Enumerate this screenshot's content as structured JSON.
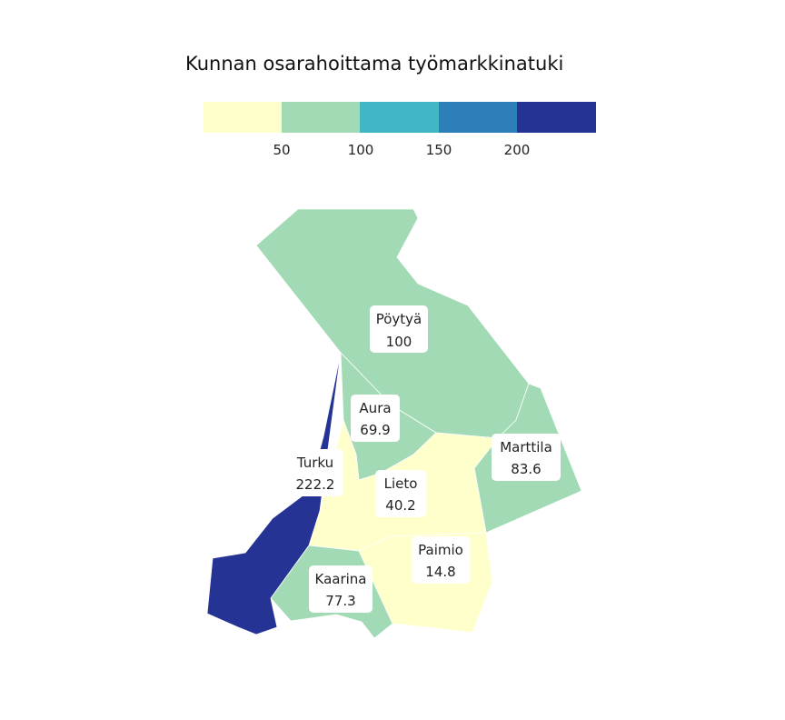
{
  "chart_data": {
    "type": "choropleth",
    "title": "Kunnan osarahoittama työmarkkinatuki",
    "legend": {
      "placement": "top",
      "breaks": [
        50,
        100,
        150,
        200
      ],
      "tick_labels": [
        "50",
        "100",
        "150",
        "200"
      ],
      "colors": [
        "#ffffcc",
        "#a1dab4",
        "#41b6c4",
        "#2c7fb8",
        "#253494"
      ]
    },
    "regions": [
      {
        "name": "Pöytyä",
        "value": "100",
        "color": "#a1dab4"
      },
      {
        "name": "Aura",
        "value": "69.9",
        "color": "#a1dab4"
      },
      {
        "name": "Turku",
        "value": "222.2",
        "color": "#253494"
      },
      {
        "name": "Marttila",
        "value": "83.6",
        "color": "#a1dab4"
      },
      {
        "name": "Lieto",
        "value": "40.2",
        "color": "#ffffcc"
      },
      {
        "name": "Paimio",
        "value": "14.8",
        "color": "#ffffcc"
      },
      {
        "name": "Kaarina",
        "value": "77.3",
        "color": "#a1dab4"
      }
    ]
  }
}
